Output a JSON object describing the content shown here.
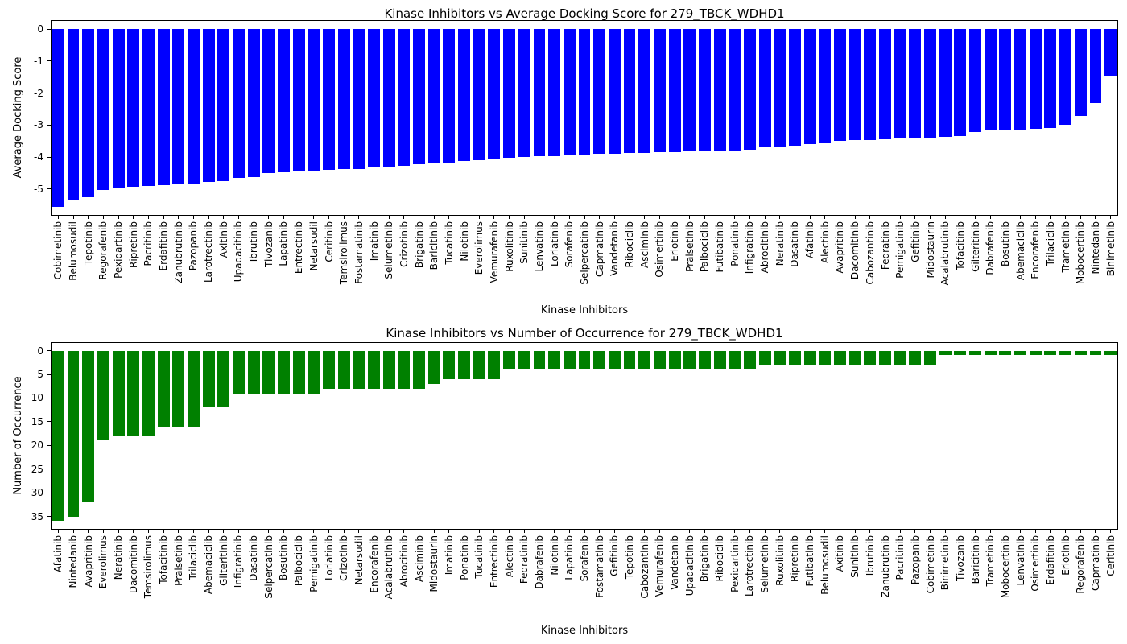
{
  "figure_background": "#ffffff",
  "chart_data": [
    {
      "type": "bar",
      "title": "Kinase Inhibitors vs Average Docking Score for 279_TBCK_WDHD1",
      "xlabel": "Kinase Inhibitors",
      "ylabel": "Average Docking Score",
      "bar_color": "#0000ff",
      "grid": false,
      "legend": "none",
      "ylim_bottom_top": [
        -5.83,
        0.28
      ],
      "yticks": [
        0,
        -1,
        -2,
        -3,
        -4,
        -5
      ],
      "categories": [
        "Cobimetinib",
        "Belumosudil",
        "Tepotinib",
        "Regorafenib",
        "Pexidartinib",
        "Ripretinib",
        "Pacritinib",
        "Erdafitinib",
        "Zanubrutinib",
        "Pazopanib",
        "Larotrectinib",
        "Axitinib",
        "Upadacitinib",
        "Ibrutinib",
        "Tivozanib",
        "Lapatinib",
        "Entrectinib",
        "Netarsudil",
        "Ceritinib",
        "Temsirolimus",
        "Fostamatinib",
        "Imatinib",
        "Selumetinib",
        "Crizotinib",
        "Brigatinib",
        "Baricitinib",
        "Tucatinib",
        "Nilotinib",
        "Everolimus",
        "Vemurafenib",
        "Ruxolitinib",
        "Sunitinib",
        "Lenvatinib",
        "Lorlatinib",
        "Sorafenib",
        "Selpercatinib",
        "Capmatinib",
        "Vandetanib",
        "Ribociclib",
        "Asciminib",
        "Osimertinib",
        "Erlotinib",
        "Pralsetinib",
        "Palbociclib",
        "Futibatinib",
        "Ponatinib",
        "Infigratinib",
        "Abrocitinib",
        "Neratinib",
        "Dasatinib",
        "Afatinib",
        "Alectinib",
        "Avapritinib",
        "Dacomitinib",
        "Cabozantinib",
        "Fedratinib",
        "Pemigatinib",
        "Gefitinib",
        "Midostaurin",
        "Acalabrutinib",
        "Tofacitinib",
        "Gilteritinib",
        "Dabrafenib",
        "Bosutinib",
        "Abemaciclib",
        "Encorafenib",
        "Trilaciclib",
        "Trametinib",
        "Mobocertinib",
        "Nintedanib",
        "Binimetinib"
      ],
      "values": [
        -5.55,
        -5.32,
        -5.25,
        -5.02,
        -4.95,
        -4.92,
        -4.9,
        -4.87,
        -4.85,
        -4.82,
        -4.78,
        -4.75,
        -4.65,
        -4.62,
        -4.5,
        -4.47,
        -4.45,
        -4.44,
        -4.4,
        -4.38,
        -4.36,
        -4.32,
        -4.3,
        -4.26,
        -4.22,
        -4.2,
        -4.17,
        -4.12,
        -4.1,
        -4.06,
        -4.02,
        -4.0,
        -3.98,
        -3.96,
        -3.94,
        -3.92,
        -3.9,
        -3.89,
        -3.87,
        -3.86,
        -3.85,
        -3.84,
        -3.83,
        -3.82,
        -3.8,
        -3.79,
        -3.76,
        -3.7,
        -3.66,
        -3.64,
        -3.6,
        -3.56,
        -3.5,
        -3.47,
        -3.46,
        -3.45,
        -3.42,
        -3.41,
        -3.4,
        -3.36,
        -3.35,
        -3.22,
        -3.17,
        -3.16,
        -3.15,
        -3.12,
        -3.1,
        -3.0,
        -2.7,
        -2.32,
        -1.45
      ]
    },
    {
      "type": "bar",
      "title": "Kinase Inhibitors vs Number of Occurrence for 279_TBCK_WDHD1",
      "xlabel": "Kinase Inhibitors",
      "ylabel": "Number of Occurrence",
      "bar_color": "#008000",
      "grid": false,
      "legend": "none",
      "y_inverted": true,
      "ylim_bottom_top": [
        37.8,
        -1.8
      ],
      "yticks": [
        0,
        5,
        10,
        15,
        20,
        25,
        30,
        35
      ],
      "categories": [
        "Afatinib",
        "Nintedanib",
        "Avapritinib",
        "Everolimus",
        "Neratinib",
        "Dacomitinib",
        "Temsirolimus",
        "Tofacitinib",
        "Pralsetinib",
        "Trilaciclib",
        "Abemaciclib",
        "Gilteritinib",
        "Infigratinib",
        "Dasatinib",
        "Selpercatinib",
        "Bosutinib",
        "Palbociclib",
        "Pemigatinib",
        "Lorlatinib",
        "Crizotinib",
        "Netarsudil",
        "Encorafenib",
        "Acalabrutinib",
        "Abrocitinib",
        "Asciminib",
        "Midostaurin",
        "Imatinib",
        "Ponatinib",
        "Tucatinib",
        "Entrectinib",
        "Alectinib",
        "Fedratinib",
        "Dabrafenib",
        "Nilotinib",
        "Lapatinib",
        "Sorafenib",
        "Fostamatinib",
        "Gefitinib",
        "Tepotinib",
        "Cabozantinib",
        "Vemurafenib",
        "Vandetanib",
        "Upadacitinib",
        "Brigatinib",
        "Ribociclib",
        "Pexidartinib",
        "Larotrectinib",
        "Selumetinib",
        "Ruxolitinib",
        "Ripretinib",
        "Futibatinib",
        "Belumosudil",
        "Axitinib",
        "Sunitinib",
        "Ibrutinib",
        "Zanubrutinib",
        "Pacritinib",
        "Pazopanib",
        "Cobimetinib",
        "Binimetinib",
        "Tivozanib",
        "Baricitinib",
        "Trametinib",
        "Mobocertinib",
        "Lenvatinib",
        "Osimertinib",
        "Erdafitinib",
        "Erlotinib",
        "Regorafenib",
        "Capmatinib",
        "Ceritinib"
      ],
      "values": [
        36,
        35,
        32,
        19,
        18,
        18,
        18,
        16,
        16,
        16,
        12,
        12,
        9,
        9,
        9,
        9,
        9,
        9,
        8,
        8,
        8,
        8,
        8,
        8,
        8,
        7,
        6,
        6,
        6,
        6,
        4,
        4,
        4,
        4,
        4,
        4,
        4,
        4,
        4,
        4,
        4,
        4,
        4,
        4,
        4,
        4,
        4,
        3,
        3,
        3,
        3,
        3,
        3,
        3,
        3,
        3,
        3,
        3,
        3,
        1,
        1,
        1,
        1,
        1,
        1,
        1,
        1,
        1,
        1,
        1,
        1
      ]
    }
  ]
}
